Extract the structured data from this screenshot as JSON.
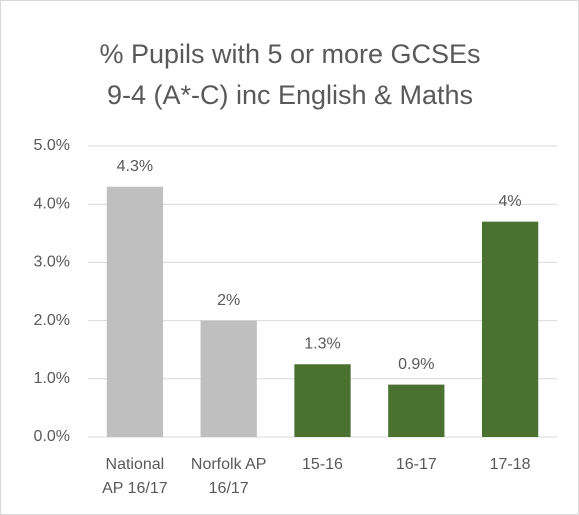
{
  "chart_data": {
    "type": "bar",
    "title": "% Pupils with 5 or more GCSEs",
    "subtitle": "9-4 (A*-C) inc English & Maths",
    "categories": [
      "National AP 16/17",
      "Norfolk AP 16/17",
      "15-16",
      "16-17",
      "17-18"
    ],
    "values": [
      4.3,
      2.0,
      1.25,
      0.9,
      3.7
    ],
    "value_labels": [
      "4.3%",
      "2%",
      "1.3%",
      "0.9%",
      "4%"
    ],
    "colors": [
      "#bfbfbf",
      "#bfbfbf",
      "#4b7131",
      "#4b7131",
      "#4b7131"
    ],
    "ylim": [
      0,
      5
    ],
    "yticks": [
      {
        "value": 0,
        "label": "0.0%"
      },
      {
        "value": 1,
        "label": "1.0%"
      },
      {
        "value": 2,
        "label": "2.0%"
      },
      {
        "value": 3,
        "label": "3.0%"
      },
      {
        "value": 4,
        "label": "4.0%"
      },
      {
        "value": 5,
        "label": "5.0%"
      }
    ],
    "grid": true
  }
}
